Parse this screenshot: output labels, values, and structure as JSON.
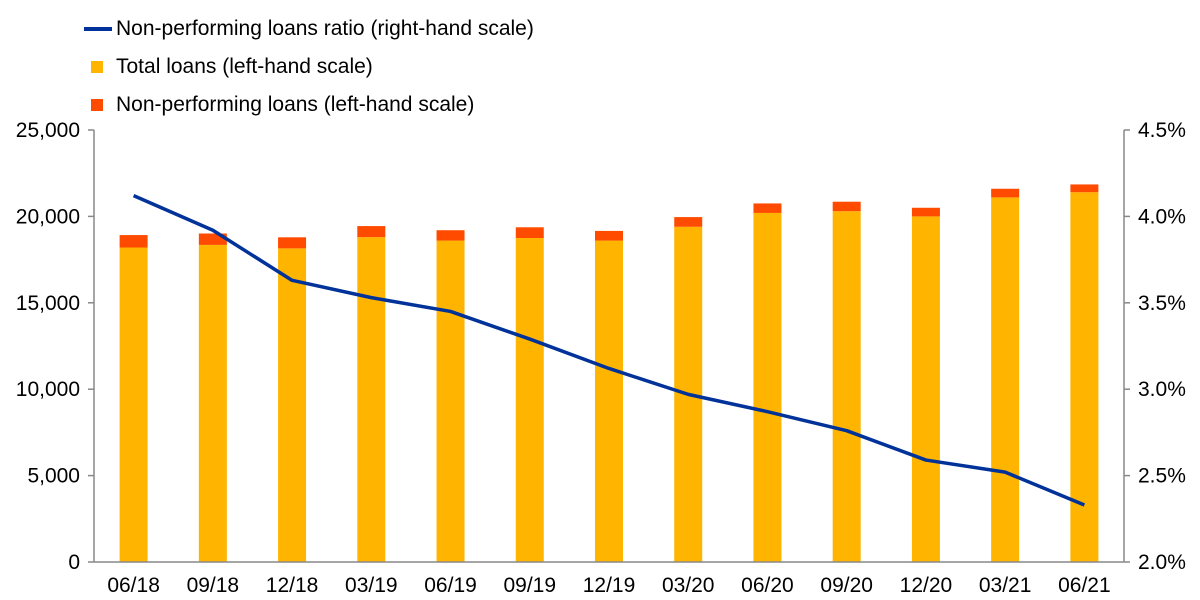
{
  "legend": {
    "line_label": "Non-performing loans ratio (right-hand scale)",
    "total_label": "Total loans (left-hand scale)",
    "npl_label": "Non-performing loans (left-hand scale)"
  },
  "colors": {
    "total": "#FFB400",
    "npl": "#FF4B00",
    "line": "#003299",
    "axis": "#888888"
  },
  "chart_data": {
    "type": "bar",
    "categories": [
      "06/18",
      "09/18",
      "12/18",
      "03/19",
      "06/19",
      "09/19",
      "12/19",
      "03/20",
      "06/20",
      "09/20",
      "12/20",
      "03/21",
      "06/21"
    ],
    "series": [
      {
        "name": "Total loans (left-hand scale)",
        "axis": "left",
        "kind": "stacked-bar",
        "values": [
          18200,
          18350,
          18150,
          18800,
          18600,
          18750,
          18600,
          19400,
          20200,
          20300,
          20000,
          21100,
          21400
        ]
      },
      {
        "name": "Non-performing loans (left-hand scale)",
        "axis": "left",
        "kind": "stacked-bar",
        "values": [
          720,
          660,
          640,
          640,
          600,
          620,
          560,
          560,
          550,
          550,
          500,
          500,
          450
        ]
      },
      {
        "name": "Non-performing loans ratio (right-hand scale)",
        "axis": "right",
        "kind": "line",
        "values": [
          4.12,
          3.92,
          3.63,
          3.53,
          3.45,
          3.29,
          3.12,
          2.97,
          2.87,
          2.76,
          2.59,
          2.52,
          2.33
        ]
      }
    ],
    "y_left": {
      "min": 0,
      "max": 25000,
      "ticks": [
        0,
        5000,
        10000,
        15000,
        20000,
        25000
      ],
      "tick_labels": [
        "0",
        "5,000",
        "10,000",
        "15,000",
        "20,000",
        "25,000"
      ]
    },
    "y_right": {
      "min": 2.0,
      "max": 4.5,
      "ticks": [
        2.0,
        2.5,
        3.0,
        3.5,
        4.0,
        4.5
      ],
      "tick_labels": [
        "2.0%",
        "2.5%",
        "3.0%",
        "3.5%",
        "4.0%",
        "4.5%"
      ]
    },
    "grid": false,
    "legend_position": "top-left"
  }
}
